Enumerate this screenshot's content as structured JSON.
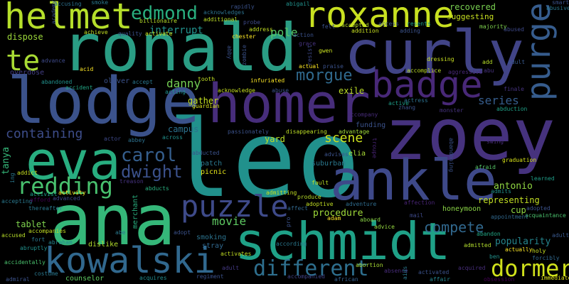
{
  "words": [
    {
      "text": "leo",
      "color": "#21918c"
    },
    {
      "text": "zoey",
      "color": "#46327e"
    },
    {
      "text": "ronald",
      "color": "#2a9d84"
    },
    {
      "text": "curly",
      "color": "#414487"
    },
    {
      "text": "lodge",
      "color": "#3b528b"
    },
    {
      "text": "homer",
      "color": "#472d7b"
    },
    {
      "text": "ana",
      "color": "#35b779"
    },
    {
      "text": "schmidt",
      "color": "#1fa187"
    },
    {
      "text": "ankle",
      "color": "#3e4989"
    },
    {
      "text": "eva",
      "color": "#28ae80"
    },
    {
      "text": "roxanne",
      "color": "#c8e020"
    },
    {
      "text": "helmet",
      "color": "#b5de2b"
    },
    {
      "text": "badge",
      "color": "#482878"
    },
    {
      "text": "purge",
      "color": "#365c8d"
    },
    {
      "text": "kowalski",
      "color": "#31688e"
    },
    {
      "text": "puzzle",
      "color": "#3e4a89"
    },
    {
      "text": "dormer",
      "color": "#d0e11c"
    },
    {
      "text": "different",
      "color": "#2e6f8e"
    },
    {
      "text": "te",
      "color": "#a8db34"
    },
    {
      "text": "redding",
      "color": "#48c16e"
    },
    {
      "text": "edmond",
      "color": "#29af7f"
    },
    {
      "text": "carol",
      "color": "#355e8d"
    },
    {
      "text": "dwight",
      "color": "#3b518b"
    },
    {
      "text": "morgue",
      "color": "#306a8e"
    },
    {
      "text": "compete",
      "color": "#31688e"
    },
    {
      "text": "scene",
      "color": "#cde11d"
    },
    {
      "text": "containing",
      "color": "#3d4d8a"
    },
    {
      "text": "series",
      "color": "#365d8d"
    },
    {
      "text": "danny",
      "color": "#75d054"
    },
    {
      "text": "movie",
      "color": "#5ec962"
    },
    {
      "text": "interrupt",
      "color": "#21918c"
    },
    {
      "text": "pole",
      "color": "#56c667"
    },
    {
      "text": "antonio",
      "color": "#90d743"
    },
    {
      "text": "recovered",
      "color": "#7ad151"
    },
    {
      "text": "procedure",
      "color": "#9fda3a"
    },
    {
      "text": "popularity",
      "color": "#25858e"
    },
    {
      "text": "tablet",
      "color": "#7fd34e"
    },
    {
      "text": "tanya",
      "color": "#35b779"
    },
    {
      "text": "representing",
      "color": "#c2df23"
    },
    {
      "text": "honeymoon",
      "color": "#8bd646"
    },
    {
      "text": "suggesting",
      "color": "#c8e020"
    },
    {
      "text": "dispose",
      "color": "#9dd93b"
    },
    {
      "text": "overdose",
      "color": "#433e85"
    },
    {
      "text": "campus",
      "color": "#2c718e"
    },
    {
      "text": "gather",
      "color": "#c5e021"
    },
    {
      "text": "exile",
      "color": "#bddf26"
    },
    {
      "text": "yard",
      "color": "#b8de29"
    },
    {
      "text": "smoking",
      "color": "#2c738e"
    },
    {
      "text": "funding",
      "color": "#3b528b"
    },
    {
      "text": "merchant",
      "color": "#29af7f"
    },
    {
      "text": "counselor",
      "color": "#5ec962"
    },
    {
      "text": "accidentally",
      "color": "#4ac16d"
    },
    {
      "text": "dislike",
      "color": "#b2dd2d"
    },
    {
      "text": "adventure",
      "color": "#2f6c8e"
    },
    {
      "text": "absence",
      "color": "#472c7a"
    },
    {
      "text": "abortion",
      "color": "#a8db34"
    },
    {
      "text": "finale",
      "color": "#46337f"
    },
    {
      "text": "majority",
      "color": "#7fd34e"
    },
    {
      "text": "guardian",
      "color": "#d8e219"
    },
    {
      "text": "accomplice",
      "color": "#bddf26"
    },
    {
      "text": "obsession",
      "color": "#440154"
    },
    {
      "text": "acquaintance",
      "color": "#4ac16d"
    },
    {
      "text": "immediate",
      "color": "#e2e418"
    },
    {
      "text": "holy",
      "color": "#c8e020"
    },
    {
      "text": "actually",
      "color": "#fde725"
    },
    {
      "text": "forcibly",
      "color": "#31688e"
    },
    {
      "text": "admitted",
      "color": "#b2dd2d"
    },
    {
      "text": "abandon",
      "color": "#22a785"
    },
    {
      "text": "appointment",
      "color": "#31688e"
    },
    {
      "text": "adopted",
      "color": "#3b528b"
    },
    {
      "text": "graduation",
      "color": "#d8e219"
    },
    {
      "text": "swing",
      "color": "#472c7a"
    },
    {
      "text": "abduction",
      "color": "#1fa187"
    },
    {
      "text": "afraid",
      "color": "#56c667"
    },
    {
      "text": "learned",
      "color": "#1f9e89"
    },
    {
      "text": "admits",
      "color": "#21918c"
    },
    {
      "text": "cup",
      "color": "#90d743"
    },
    {
      "text": "mail",
      "color": "#3e4989"
    },
    {
      "text": "affection",
      "color": "#482475"
    },
    {
      "text": "affect",
      "color": "#31688e"
    },
    {
      "text": "adoptive",
      "color": "#c2df23"
    },
    {
      "text": "produce",
      "color": "#b8de29"
    },
    {
      "text": "adam",
      "color": "#fde725"
    },
    {
      "text": "aboard",
      "color": "#8bd646"
    },
    {
      "text": "advice",
      "color": "#95d840"
    },
    {
      "text": "according",
      "color": "#2a788e"
    },
    {
      "text": "activates",
      "color": "#c2df23"
    },
    {
      "text": "regiment",
      "color": "#3b528b"
    },
    {
      "text": "acquires",
      "color": "#228c8d"
    },
    {
      "text": "accompanied",
      "color": "#414487"
    },
    {
      "text": "african",
      "color": "#355f8d"
    },
    {
      "text": "affair",
      "color": "#25858e"
    },
    {
      "text": "activated",
      "color": "#3b528b"
    },
    {
      "text": "acquired",
      "color": "#472d7b"
    },
    {
      "text": "adult",
      "color": "#38588c"
    },
    {
      "text": "abused",
      "color": "#3e4989"
    },
    {
      "text": "abusive",
      "color": "#2a788e"
    },
    {
      "text": "abu",
      "color": "#46327e"
    },
    {
      "text": "add",
      "color": "#b8de29"
    },
    {
      "text": "aggressive",
      "color": "#482878"
    },
    {
      "text": "dressing",
      "color": "#c8e020"
    },
    {
      "text": "actress",
      "color": "#2c718e"
    },
    {
      "text": "active",
      "color": "#1f9e89"
    },
    {
      "text": "accompany",
      "color": "#472c7a"
    },
    {
      "text": "advantage",
      "color": "#a0da39"
    },
    {
      "text": "disappearing",
      "color": "#bddf26"
    },
    {
      "text": "advises",
      "color": "#3b528b"
    },
    {
      "text": "elia",
      "color": "#a8db34"
    },
    {
      "text": "suburban",
      "color": "#2a788e"
    },
    {
      "text": "passionately",
      "color": "#3b528b"
    },
    {
      "text": "abbey",
      "color": "#2c718e"
    },
    {
      "text": "actor",
      "color": "#3e4989"
    },
    {
      "text": "across",
      "color": "#21918c"
    },
    {
      "text": "abducted",
      "color": "#3b528b"
    },
    {
      "text": "patch",
      "color": "#2a788e"
    },
    {
      "text": "picnic",
      "color": "#e5e419"
    },
    {
      "text": "fault",
      "color": "#bddf26"
    },
    {
      "text": "treason",
      "color": "#46337f"
    },
    {
      "text": "abducts",
      "color": "#29af7f"
    },
    {
      "text": "admitting",
      "color": "#c2df23"
    },
    {
      "text": "adopt",
      "color": "#3b528b"
    },
    {
      "text": "abe",
      "color": "#2a788e"
    },
    {
      "text": "stray",
      "color": "#31688e"
    },
    {
      "text": "adult",
      "color": "#443983"
    },
    {
      "text": "costume",
      "color": "#2a788e"
    },
    {
      "text": "abraham",
      "color": "#25858e"
    },
    {
      "text": "abruptly",
      "color": "#21918c"
    },
    {
      "text": "accompanies",
      "color": "#c2df23"
    },
    {
      "text": "accused",
      "color": "#b8de29"
    },
    {
      "text": "fort",
      "color": "#2a788e"
    },
    {
      "text": "admiral",
      "color": "#3b528b"
    },
    {
      "text": "accepting",
      "color": "#2a788e"
    },
    {
      "text": "afford",
      "color": "#440154"
    },
    {
      "text": "thereafter",
      "color": "#2a788e"
    },
    {
      "text": "advanced",
      "color": "#3e4989"
    },
    {
      "text": "activity",
      "color": "#fde725"
    },
    {
      "text": "activist",
      "color": "#1f9e89"
    },
    {
      "text": "addict",
      "color": "#c8e020"
    },
    {
      "text": "ing",
      "color": "#2a788e"
    },
    {
      "text": "abandoning",
      "color": "#3b528b"
    },
    {
      "text": "troupe",
      "color": "#482475"
    },
    {
      "text": "zhang",
      "color": "#3b528b"
    },
    {
      "text": "monster",
      "color": "#46337f"
    },
    {
      "text": "acknowledge",
      "color": "#c8e020"
    },
    {
      "text": "infuriated",
      "color": "#fde725"
    },
    {
      "text": "abuse",
      "color": "#3b528b"
    },
    {
      "text": "tooth",
      "color": "#c2df23"
    },
    {
      "text": "accept",
      "color": "#2a788e"
    },
    {
      "text": "acting",
      "color": "#21918c"
    },
    {
      "text": "oliver",
      "color": "#3b528b"
    },
    {
      "text": "accident",
      "color": "#22a785"
    },
    {
      "text": "abandoned",
      "color": "#21918c"
    },
    {
      "text": "acid",
      "color": "#fde725"
    },
    {
      "text": "advance",
      "color": "#3e4989"
    },
    {
      "text": "academy",
      "color": "#3b528b"
    },
    {
      "text": "accusing",
      "color": "#2c718e"
    },
    {
      "text": "smoke",
      "color": "#2a788e"
    },
    {
      "text": "rapidly",
      "color": "#3b528b"
    },
    {
      "text": "abigail",
      "color": "#21918c"
    },
    {
      "text": "achieve",
      "color": "#c2df23"
    },
    {
      "text": "quality",
      "color": "#3b528b"
    },
    {
      "text": "activate",
      "color": "#c8e020"
    },
    {
      "text": "billionaire",
      "color": "#b8de29"
    },
    {
      "text": "additional",
      "color": "#bddf26"
    },
    {
      "text": "acknowledges",
      "color": "#2c718e"
    },
    {
      "text": "probe",
      "color": "#3e4989"
    },
    {
      "text": "address",
      "color": "#c2df23"
    },
    {
      "text": "chester",
      "color": "#fde725"
    },
    {
      "text": "zombie",
      "color": "#3b528b"
    },
    {
      "text": "abby",
      "color": "#3b528b"
    },
    {
      "text": "action",
      "color": "#3b528b"
    },
    {
      "text": "felt",
      "color": "#3b528b"
    },
    {
      "text": "accepted",
      "color": "#b8de29"
    },
    {
      "text": "addition",
      "color": "#c8e020"
    },
    {
      "text": "access",
      "color": "#3b528b"
    },
    {
      "text": "resents",
      "color": "#1f9e89"
    },
    {
      "text": "adding",
      "color": "#3b528b"
    },
    {
      "text": "grace",
      "color": "#46337f"
    },
    {
      "text": "gwen",
      "color": "#c8e020"
    },
    {
      "text": "actual",
      "color": "#fde725"
    },
    {
      "text": "praise",
      "color": "#3b528b"
    },
    {
      "text": "resist",
      "color": "#3e4989"
    },
    {
      "text": "pro",
      "color": "#3b528b"
    },
    {
      "text": "ben",
      "color": "#21918c"
    },
    {
      "text": "aids",
      "color": "#2a788e"
    },
    {
      "text": "adult",
      "color": "#38588c"
    },
    {
      "text": "smart",
      "color": "#3b528b"
    }
  ]
}
